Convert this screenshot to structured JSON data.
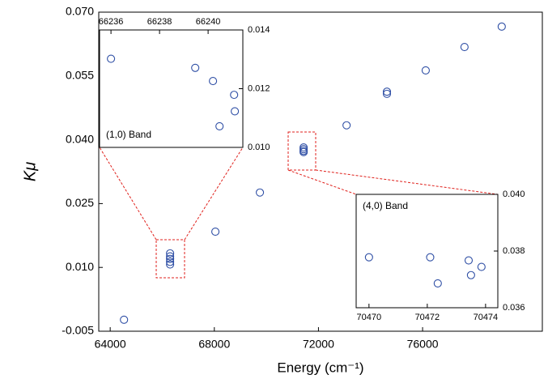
{
  "chart_data": [
    {
      "type": "scatter",
      "xlabel": "Energy (cm⁻¹)",
      "ylabel": "Kμ",
      "xlim": [
        63560,
        80600
      ],
      "ylim": [
        -0.005,
        0.07
      ],
      "xticks": [
        64000,
        68000,
        72000,
        76000
      ],
      "yticks": [
        -0.005,
        {
          "value": 0.01,
          "label": "0.010"
        },
        {
          "value": 0.025,
          "label": "0.025"
        },
        {
          "value": 0.04,
          "label": "0.040"
        },
        {
          "value": 0.055,
          "label": "0.055"
        },
        {
          "value": 0.07,
          "label": "0.070"
        }
      ],
      "series": [
        {
          "color": "#2f4fa5",
          "x": [
            64530,
            66300,
            66300,
            66300,
            66300,
            66300,
            68040,
            69750,
            71430,
            71430,
            71430,
            71430,
            73080,
            74630,
            74630,
            76120,
            77610,
            79040
          ],
          "values": [
            -0.0023,
            0.0133,
            0.0126,
            0.012,
            0.0113,
            0.0107,
            0.0184,
            0.0276,
            0.0382,
            0.0378,
            0.0374,
            0.0371,
            0.0434,
            0.0513,
            0.0508,
            0.0563,
            0.0618,
            0.0666
          ]
        }
      ]
    },
    {
      "type": "scatter",
      "annotation": "(1,0) Band",
      "xlim": [
        66235.53,
        66241.43
      ],
      "ylim": [
        0.01,
        0.014
      ],
      "xticks": [
        66236,
        66238,
        66240
      ],
      "yticks": [
        {
          "value": 0.01,
          "label": "0.010"
        },
        0.012,
        0.014
      ],
      "series": [
        {
          "color": "#2f4fa5",
          "x": [
            66236.0,
            66239.47,
            66240.2,
            66241.07,
            66241.1,
            66240.47
          ],
          "values": [
            0.01302,
            0.01271,
            0.01226,
            0.01179,
            0.01123,
            0.01072
          ]
        }
      ]
    },
    {
      "type": "scatter",
      "annotation": "(4,0) Band",
      "xlim": [
        70469.56,
        70474.42
      ],
      "ylim": [
        0.036,
        0.04
      ],
      "xticks": [
        70470,
        70472,
        70474
      ],
      "yticks": [
        0.036,
        0.038,
        {
          "value": 0.04,
          "label": "0.040"
        }
      ],
      "series": [
        {
          "color": "#2f4fa5",
          "x": [
            70470.0,
            70472.1,
            70472.36,
            70473.42,
            70473.5,
            70473.86
          ],
          "values": [
            0.03778,
            0.03778,
            0.03686,
            0.03767,
            0.03715,
            0.03744
          ]
        }
      ]
    }
  ]
}
